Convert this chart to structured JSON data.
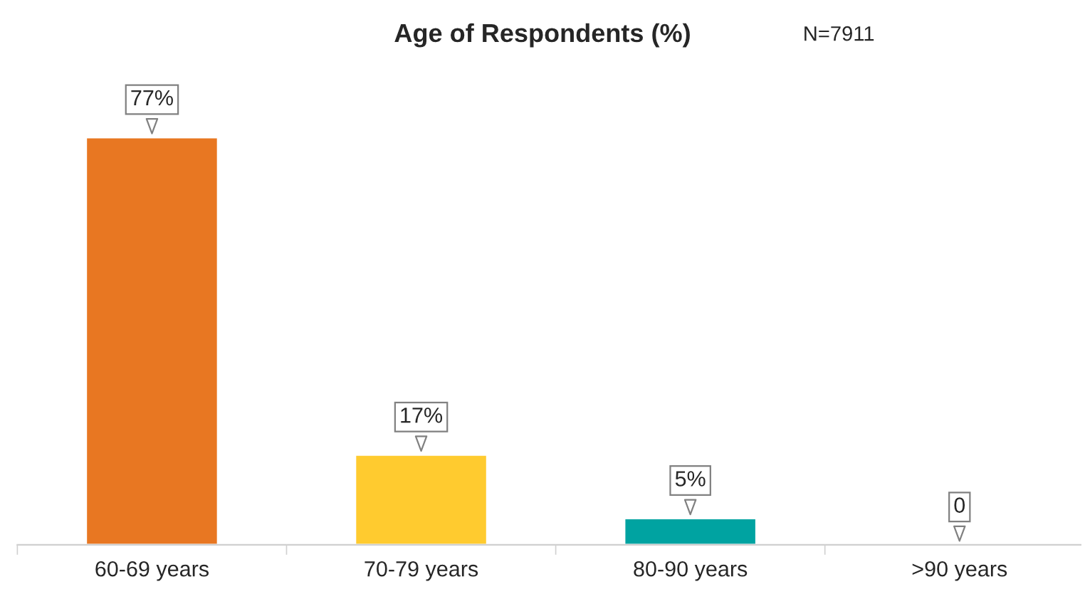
{
  "chart_data": {
    "type": "bar",
    "title": "Age of Respondents (%)",
    "annotations": [
      "N=7911"
    ],
    "categories": [
      "60-69 years",
      "70-79 years",
      "80-90 years",
      ">90 years"
    ],
    "values": [
      77,
      17,
      5,
      0
    ],
    "colors": [
      "#e87722",
      "#ffcb2f",
      "#00a3a1",
      null
    ],
    "value_labels": [
      "77%",
      "17%",
      "5%",
      "0"
    ],
    "grid": false,
    "legend": false
  }
}
